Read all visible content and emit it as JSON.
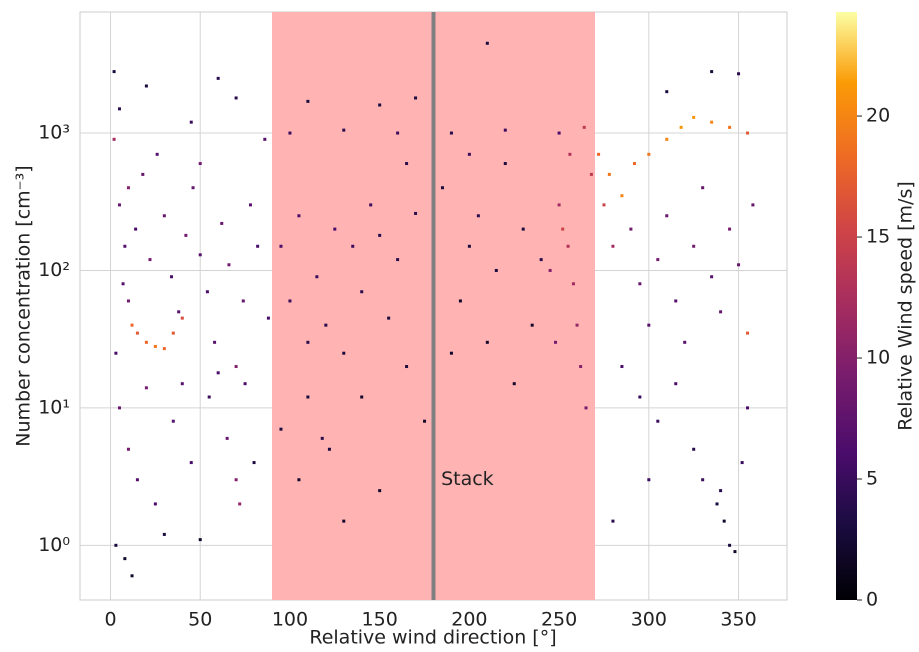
{
  "chart_data": {
    "type": "scatter",
    "x_label": "Relative wind direction [°]",
    "y_label": "Number concentration [cm⁻³]",
    "colorbar_label": "Relative Wind speed [m/s]",
    "colormap": "inferno",
    "log_y": true,
    "grid": true,
    "xlim": [
      -17,
      377
    ],
    "xticks": [
      0,
      50,
      100,
      150,
      200,
      250,
      300,
      350
    ],
    "ylim": [
      0.4,
      7600
    ],
    "yticks": [
      {
        "value": 1,
        "label": "10⁰"
      },
      {
        "value": 10,
        "label": "10¹"
      },
      {
        "value": 100,
        "label": "10²"
      },
      {
        "value": 1000,
        "label": "10³"
      }
    ],
    "clim": [
      0,
      24.3
    ],
    "cticks": [
      0,
      5,
      10,
      15,
      20
    ],
    "spans": [
      {
        "from": 90,
        "to": 270,
        "color": "#ffb3b3"
      }
    ],
    "vlines": [
      {
        "x": 180,
        "color": "#808080"
      }
    ],
    "annotations": [
      {
        "text": "Stack",
        "x": 182,
        "y": 3
      }
    ],
    "x": [
      2,
      5,
      8,
      10,
      12,
      15,
      20,
      25,
      30,
      35,
      40,
      3,
      7,
      14,
      18,
      22,
      26,
      30,
      34,
      38,
      42,
      46,
      50,
      54,
      58,
      62,
      66,
      70,
      74,
      78,
      82,
      86,
      88,
      5,
      20,
      45,
      70,
      2,
      60,
      5,
      10,
      15,
      25,
      35,
      45,
      55,
      65,
      70,
      72,
      75,
      3,
      8,
      12,
      30,
      50,
      80,
      40,
      60,
      20,
      10,
      50,
      95,
      100,
      105,
      110,
      115,
      120,
      125,
      130,
      135,
      140,
      145,
      150,
      155,
      160,
      165,
      170,
      118,
      122,
      110,
      105,
      130,
      150,
      100,
      130,
      160,
      190,
      220,
      250,
      110,
      150,
      170,
      210,
      185,
      195,
      200,
      205,
      210,
      215,
      220,
      225,
      230,
      235,
      240,
      175,
      190,
      95,
      140,
      165,
      200,
      180,
      250,
      255,
      258,
      260,
      262,
      265,
      268,
      252,
      256,
      245,
      248,
      264,
      272,
      278,
      285,
      292,
      300,
      310,
      318,
      325,
      335,
      345,
      355,
      275,
      280,
      290,
      295,
      300,
      305,
      310,
      315,
      320,
      325,
      330,
      335,
      340,
      345,
      350,
      355,
      358,
      285,
      295,
      305,
      315,
      325,
      330,
      338,
      342,
      345,
      348,
      340,
      352,
      310,
      335,
      350,
      300,
      280,
      355
    ],
    "values": [
      900,
      300,
      150,
      60,
      40,
      35,
      30,
      28,
      27,
      35,
      45,
      25,
      80,
      200,
      500,
      120,
      700,
      250,
      90,
      50,
      180,
      400,
      130,
      70,
      30,
      220,
      110,
      20,
      60,
      300,
      150,
      900,
      45,
      1500,
      2200,
      1200,
      1800,
      2800,
      2500,
      10,
      5,
      3,
      2,
      8,
      4,
      12,
      6,
      3,
      2,
      15,
      1,
      0.8,
      0.6,
      1.2,
      1.1,
      4,
      15,
      18,
      14,
      400,
      600,
      150,
      60,
      250,
      30,
      90,
      40,
      200,
      25,
      150,
      70,
      300,
      180,
      45,
      120,
      20,
      260,
      6,
      5,
      12,
      3,
      1.5,
      2.5,
      1000,
      1050,
      1000,
      1000,
      1050,
      1000,
      1700,
      1600,
      1800,
      4500,
      400,
      60,
      150,
      250,
      30,
      100,
      600,
      15,
      200,
      40,
      120,
      8,
      25,
      7,
      12,
      600,
      700,
      5,
      300,
      150,
      80,
      40,
      20,
      10,
      500,
      200,
      700,
      100,
      30,
      1100,
      700,
      500,
      350,
      600,
      700,
      900,
      1100,
      1300,
      1200,
      1100,
      1000,
      300,
      150,
      200,
      80,
      40,
      120,
      250,
      60,
      30,
      150,
      400,
      90,
      50,
      200,
      110,
      35,
      300,
      20,
      12,
      8,
      15,
      5,
      3,
      2,
      1.5,
      1,
      0.9,
      2.5,
      4,
      2000,
      2800,
      2700,
      3,
      1.5,
      10
    ],
    "color_values": [
      12,
      8,
      7,
      9,
      18,
      17,
      18,
      19,
      18,
      17,
      16,
      6,
      7,
      6,
      8,
      9,
      7,
      8,
      6,
      7,
      9,
      8,
      7,
      6,
      7,
      8,
      9,
      10,
      8,
      7,
      6,
      7,
      6,
      4,
      3,
      5,
      4,
      3,
      4,
      8,
      9,
      7,
      6,
      7,
      6,
      5,
      8,
      10,
      11,
      6,
      3,
      2,
      2,
      3,
      2,
      3,
      7,
      6,
      9,
      10,
      9,
      6,
      5,
      6,
      4,
      5,
      4,
      6,
      3,
      5,
      4,
      5,
      4,
      3,
      4,
      3,
      4,
      4,
      3,
      3,
      2,
      2,
      2,
      5,
      4,
      5,
      4,
      5,
      6,
      3,
      3,
      3,
      3,
      3,
      2,
      3,
      4,
      2,
      3,
      3,
      2,
      3,
      2,
      4,
      2,
      2,
      3,
      2,
      4,
      5,
      2,
      12,
      13,
      12,
      11,
      10,
      9,
      14,
      15,
      13,
      10,
      9,
      14,
      18,
      19,
      20,
      18,
      19,
      20,
      21,
      21,
      20,
      19,
      17,
      15,
      12,
      9,
      8,
      7,
      9,
      8,
      7,
      7,
      9,
      8,
      7,
      8,
      9,
      8,
      17,
      8,
      6,
      5,
      5,
      6,
      4,
      5,
      3,
      2,
      3,
      2,
      4,
      5,
      3,
      3,
      4,
      5,
      4,
      6
    ]
  }
}
